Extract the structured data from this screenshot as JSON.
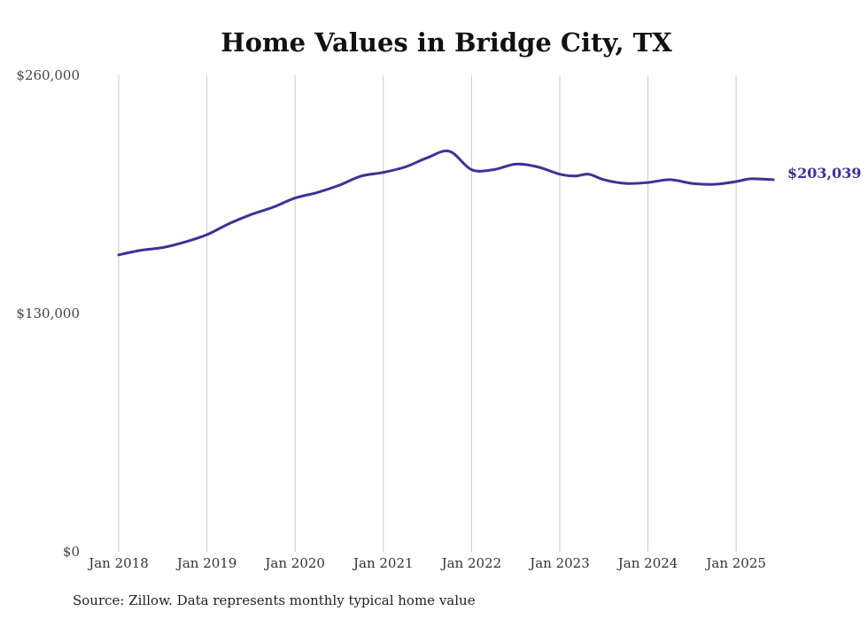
{
  "colors": {
    "line": "#3a3397",
    "grid": "#c8c8c8",
    "text": "#333333"
  },
  "source": "Source: Zillow. Data represents monthly typical home value",
  "chart_data": {
    "type": "line",
    "title": "Home Values in Bridge City, TX",
    "xlabel": "",
    "ylabel": "",
    "ylim": [
      0,
      260000
    ],
    "yticks": [
      {
        "value": 0,
        "label": "$0"
      },
      {
        "value": 130000,
        "label": "$130,000"
      },
      {
        "value": 260000,
        "label": "$260,000"
      }
    ],
    "xticks": [
      {
        "value": 2018.0,
        "label": "Jan 2018"
      },
      {
        "value": 2019.0,
        "label": "Jan 2019"
      },
      {
        "value": 2020.0,
        "label": "Jan 2020"
      },
      {
        "value": 2021.0,
        "label": "Jan 2021"
      },
      {
        "value": 2022.0,
        "label": "Jan 2022"
      },
      {
        "value": 2023.0,
        "label": "Jan 2023"
      },
      {
        "value": 2024.0,
        "label": "Jan 2024"
      },
      {
        "value": 2025.0,
        "label": "Jan 2025"
      }
    ],
    "xlim": [
      2018.0,
      2025.42
    ],
    "grid": "vertical",
    "end_label": "$203,039",
    "series": [
      {
        "name": "Typical home value",
        "x": [
          2018.0,
          2018.25,
          2018.5,
          2018.75,
          2019.0,
          2019.25,
          2019.5,
          2019.75,
          2020.0,
          2020.25,
          2020.5,
          2020.75,
          2021.0,
          2021.25,
          2021.5,
          2021.75,
          2022.0,
          2022.25,
          2022.5,
          2022.75,
          2023.0,
          2023.17,
          2023.33,
          2023.5,
          2023.75,
          2024.0,
          2024.25,
          2024.5,
          2024.75,
          2025.0,
          2025.17,
          2025.42
        ],
        "values": [
          162000,
          164500,
          166000,
          169000,
          173000,
          179000,
          184000,
          188000,
          193000,
          196000,
          200000,
          205000,
          207000,
          210000,
          215000,
          218500,
          208500,
          208500,
          211500,
          210000,
          206000,
          205000,
          206000,
          203000,
          201000,
          201500,
          203000,
          201000,
          200500,
          202000,
          203500,
          203039
        ]
      }
    ]
  }
}
